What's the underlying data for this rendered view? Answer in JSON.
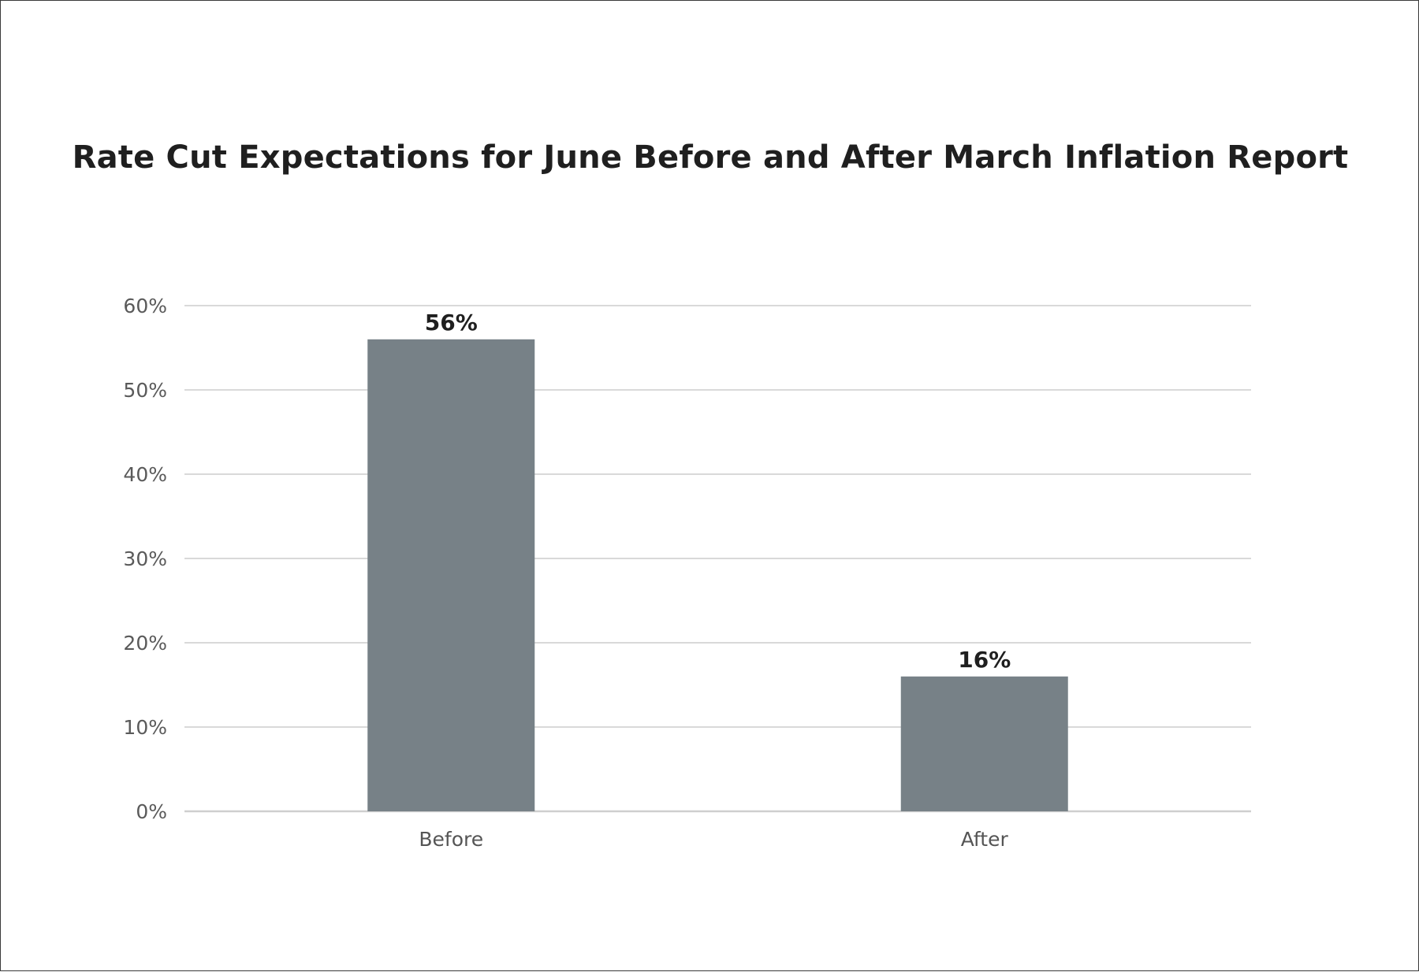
{
  "chart_data": {
    "type": "bar",
    "title": "Rate Cut Expectations for June Before and After March Inflation Report",
    "xlabel": "",
    "ylabel": "",
    "categories": [
      "Before",
      "After"
    ],
    "values": [
      56,
      16
    ],
    "data_labels": [
      "56%",
      "16%"
    ],
    "ylim": [
      0,
      60
    ],
    "y_ticks": [
      0,
      10,
      20,
      30,
      40,
      50,
      60
    ],
    "y_tick_labels": [
      "0%",
      "10%",
      "20%",
      "30%",
      "40%",
      "50%",
      "60%"
    ],
    "grid": true,
    "legend": "none",
    "bar_color": "#778187",
    "grid_color": "#d9d9d9"
  }
}
